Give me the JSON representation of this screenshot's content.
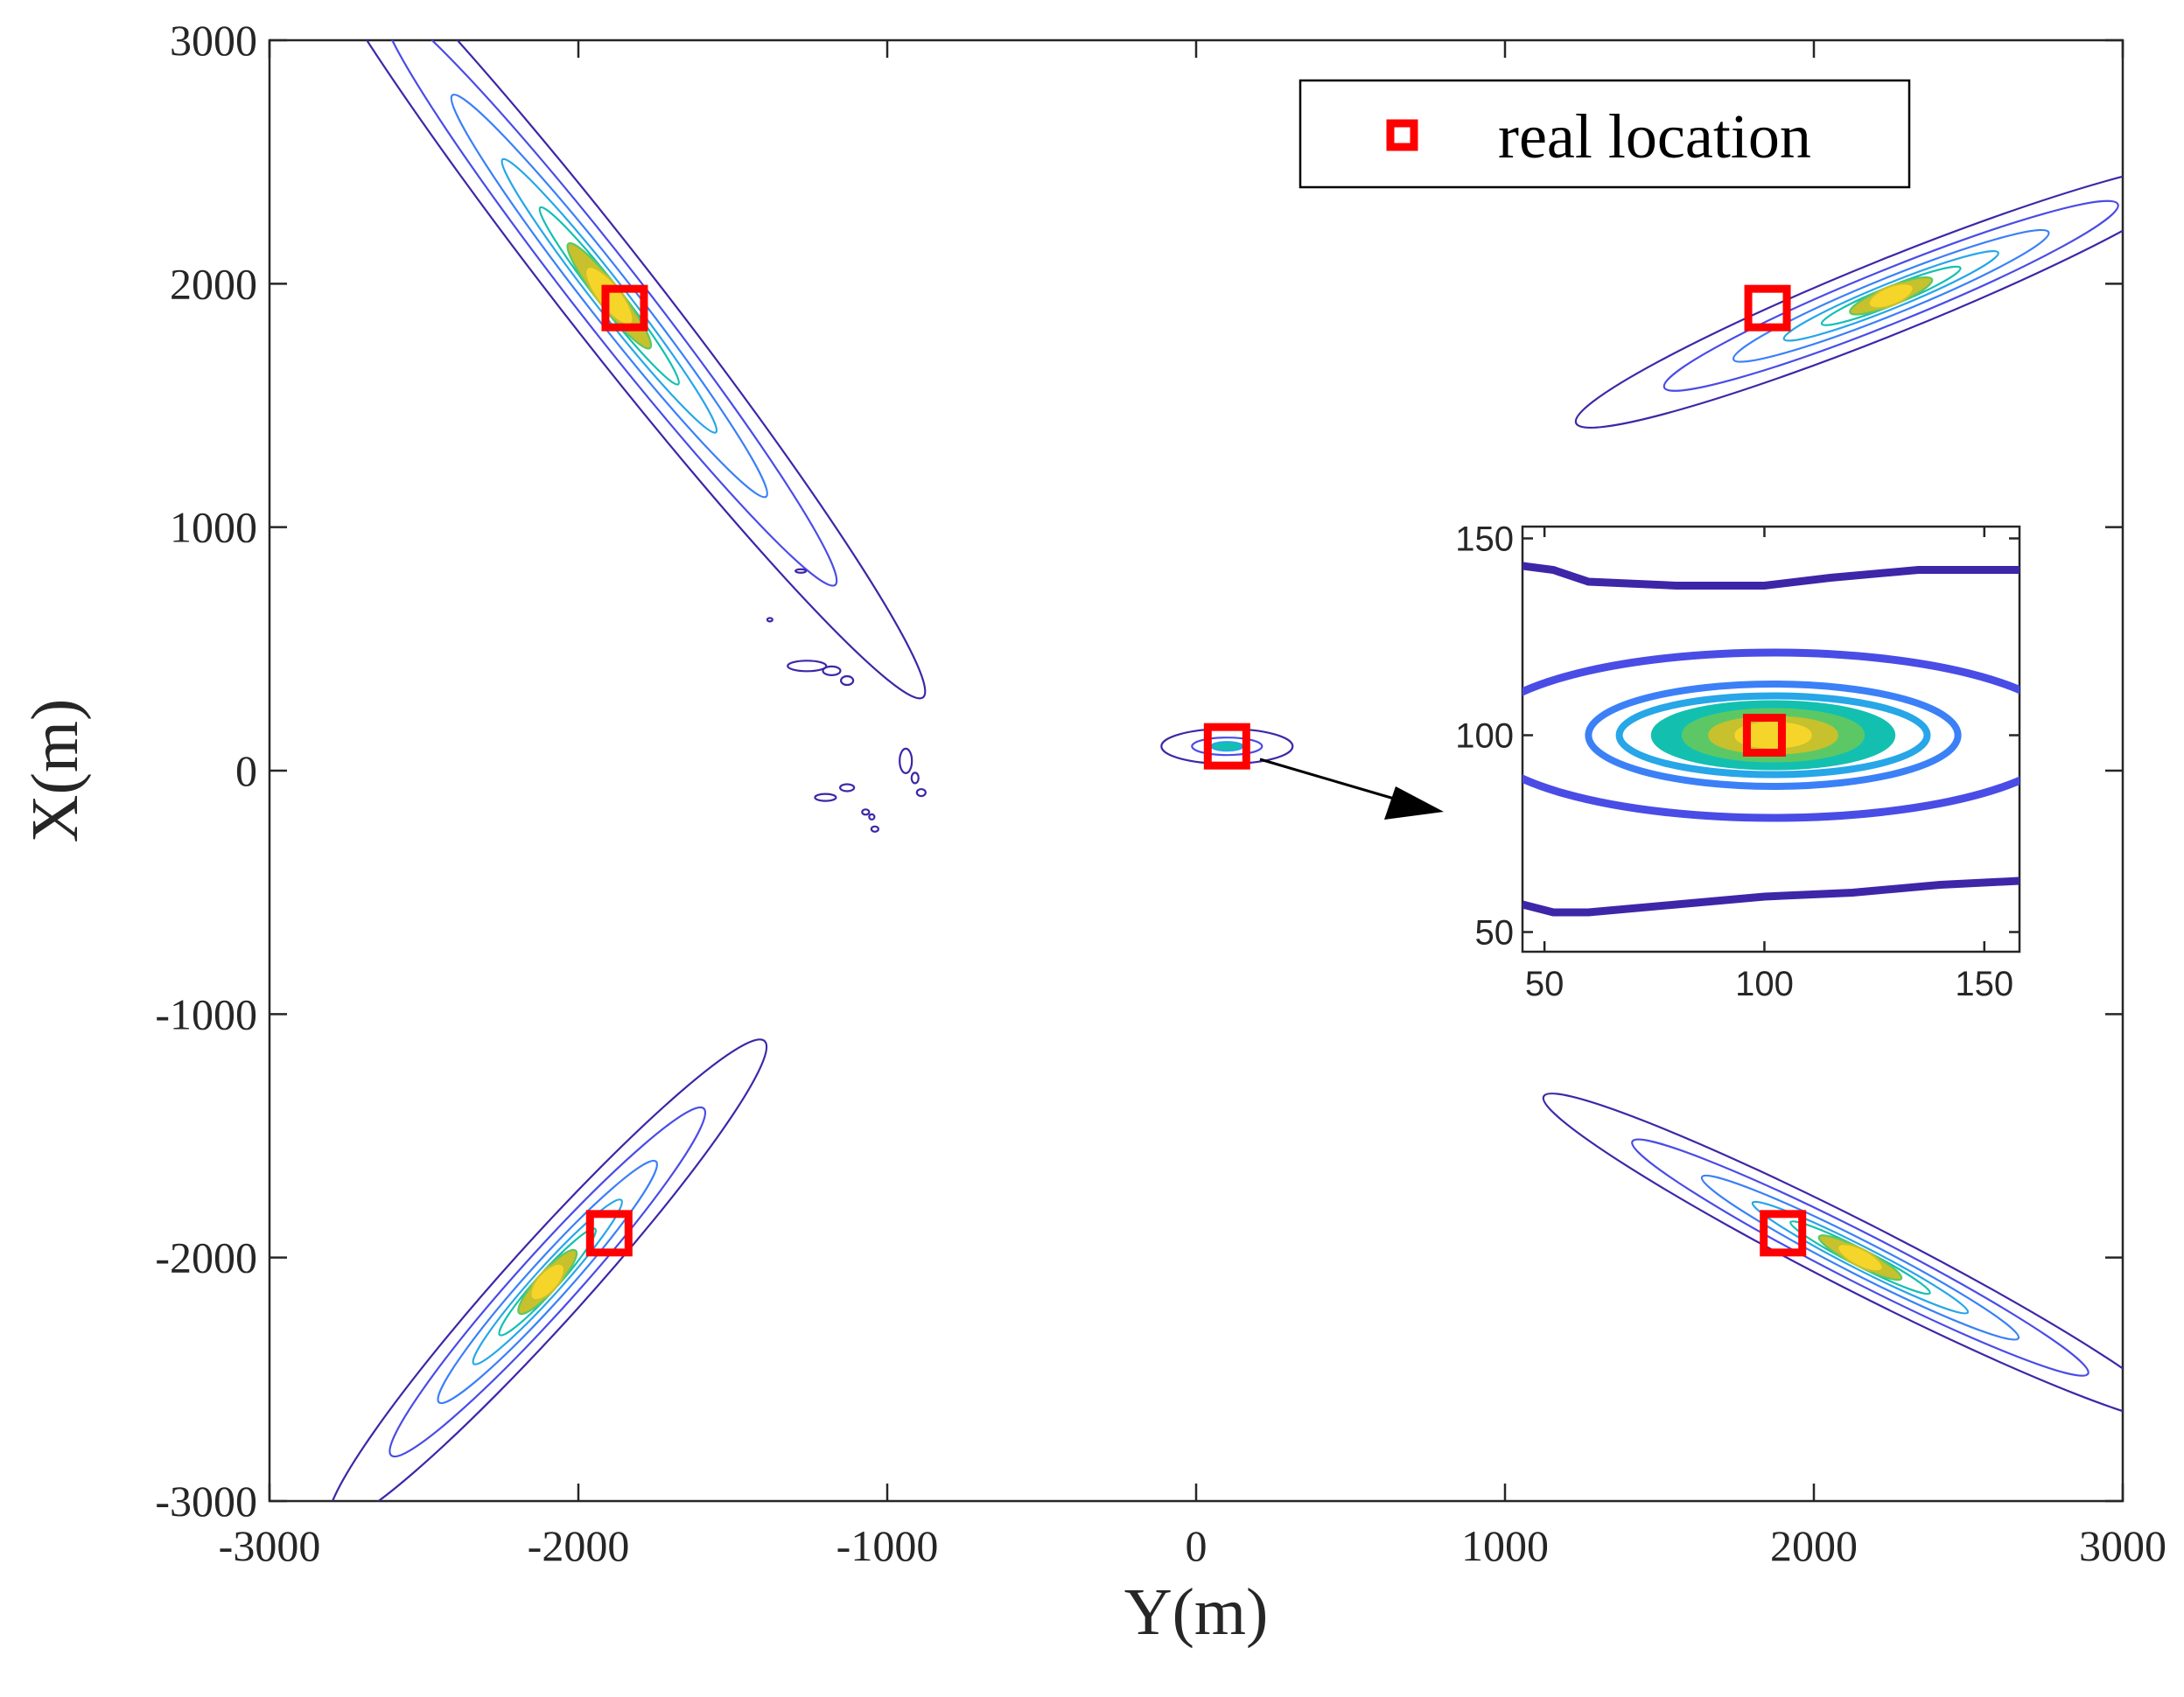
{
  "chart_data": {
    "type": "contour",
    "title": "",
    "xlabel": "Y(m)",
    "ylabel": "X(m)",
    "xlim": [
      -3000,
      3000
    ],
    "ylim": [
      -3000,
      3000
    ],
    "xticks": [
      "-3000",
      "-2000",
      "-1000",
      "0",
      "1000",
      "2000",
      "3000"
    ],
    "yticks": [
      "-3000",
      "-2000",
      "-1000",
      "0",
      "1000",
      "2000",
      "3000"
    ],
    "legend": {
      "label": "real location",
      "location": "top-right"
    },
    "real_locations": [
      {
        "x": -1850,
        "y": 1900
      },
      {
        "x": 1850,
        "y": 1900
      },
      {
        "x": 100,
        "y": 100
      },
      {
        "x": -1900,
        "y": -1900
      },
      {
        "x": 1900,
        "y": -1900
      }
    ],
    "inset": {
      "xlim": [
        45,
        158
      ],
      "ylim": [
        45,
        153
      ],
      "xticks": [
        "50",
        "100",
        "150"
      ],
      "yticks": [
        "50",
        "100",
        "150"
      ],
      "real_location": {
        "x": 100,
        "y": 100
      }
    },
    "contour_colors": [
      "#3e26a8",
      "#4a4ce6",
      "#3b80f7",
      "#27a6e8",
      "#13c0b0",
      "#5cc865",
      "#c6c12c",
      "#f6d52a"
    ]
  }
}
